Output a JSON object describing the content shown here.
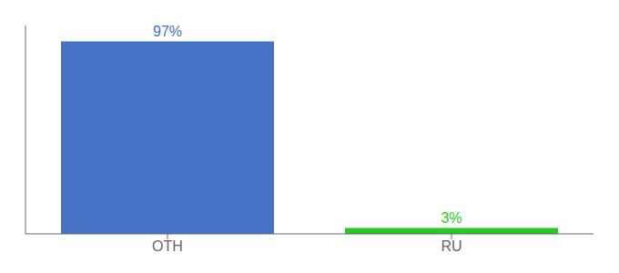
{
  "chart_data": {
    "type": "bar",
    "categories": [
      "OTH",
      "RU"
    ],
    "values": [
      97,
      3
    ],
    "colors": [
      "#4472c4",
      "#22cc22"
    ],
    "data_labels": true,
    "value_labels": [
      "97%",
      "3%"
    ],
    "ylim": [
      0,
      105
    ],
    "tick_labels": "x",
    "grid": false
  }
}
